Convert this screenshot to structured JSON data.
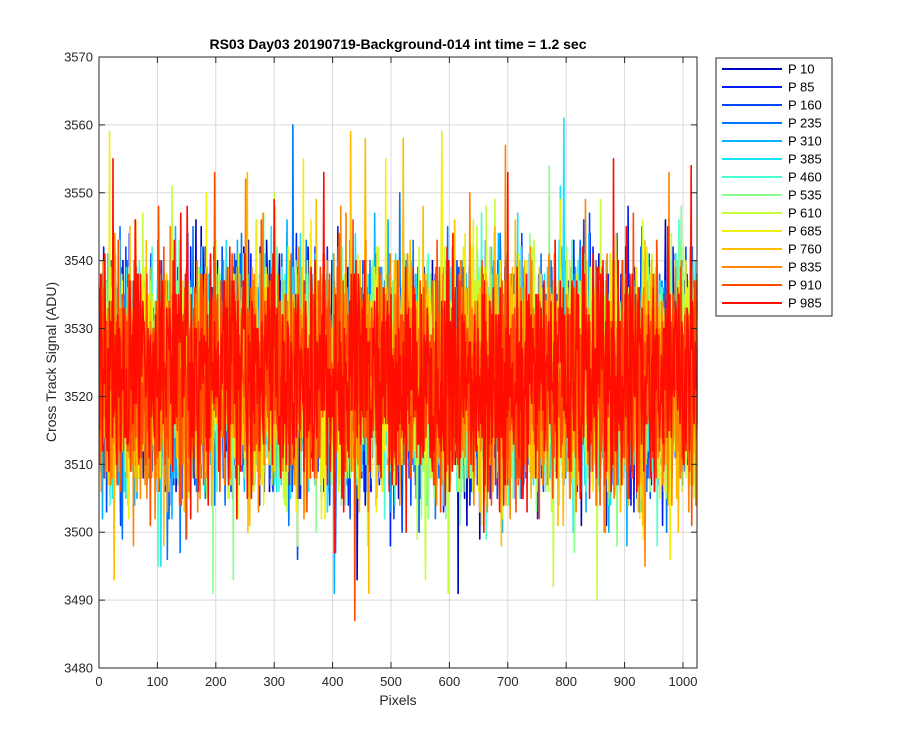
{
  "chart_data": {
    "type": "line",
    "title": "RS03 Day03 20190719-Background-014 int time = 1.2 sec",
    "xlabel": "Pixels",
    "ylabel": "Cross Track Signal (ADU)",
    "xlim": [
      0,
      1024
    ],
    "ylim": [
      3480,
      3570
    ],
    "xticks": [
      0,
      100,
      200,
      300,
      400,
      500,
      600,
      700,
      800,
      900,
      1000
    ],
    "yticks": [
      3480,
      3490,
      3500,
      3510,
      3520,
      3530,
      3540,
      3550,
      3560,
      3570
    ],
    "grid": true,
    "legend_position": "outside-top-right",
    "series_summary": {
      "points_per_series": 1024,
      "approx_mean": 3523,
      "approx_noise_range": [
        3487,
        3561
      ]
    },
    "series": [
      {
        "name": "P 10",
        "color": "#0000bf"
      },
      {
        "name": "P 85",
        "color": "#001cff"
      },
      {
        "name": "P 160",
        "color": "#0049ff"
      },
      {
        "name": "P 235",
        "color": "#0077ff"
      },
      {
        "name": "P 310",
        "color": "#00b3ff"
      },
      {
        "name": "P 385",
        "color": "#19e3f4"
      },
      {
        "name": "P 460",
        "color": "#48ffd0"
      },
      {
        "name": "P 535",
        "color": "#8cff8c"
      },
      {
        "name": "P 610",
        "color": "#c4ff3a"
      },
      {
        "name": "P 685",
        "color": "#f2ee0e"
      },
      {
        "name": "P 760",
        "color": "#ffbd00"
      },
      {
        "name": "P 835",
        "color": "#ff8400"
      },
      {
        "name": "P 910",
        "color": "#ff4a00"
      },
      {
        "name": "P 985",
        "color": "#ff0d00"
      }
    ],
    "outliers": [
      {
        "series": "P 235",
        "x": 331,
        "y": 3560
      },
      {
        "series": "P 385",
        "x": 795,
        "y": 3561
      },
      {
        "series": "P 760",
        "x": 455,
        "y": 3558
      },
      {
        "series": "P 760",
        "x": 520,
        "y": 3558
      },
      {
        "series": "P 910",
        "x": 437,
        "y": 3487
      },
      {
        "series": "P 10",
        "x": 441,
        "y": 3493
      },
      {
        "series": "P 610",
        "x": 852,
        "y": 3490
      },
      {
        "series": "P 760",
        "x": 25,
        "y": 3493
      },
      {
        "series": "P 985",
        "x": 880,
        "y": 3555
      },
      {
        "series": "P 985",
        "x": 1013,
        "y": 3554
      }
    ]
  }
}
